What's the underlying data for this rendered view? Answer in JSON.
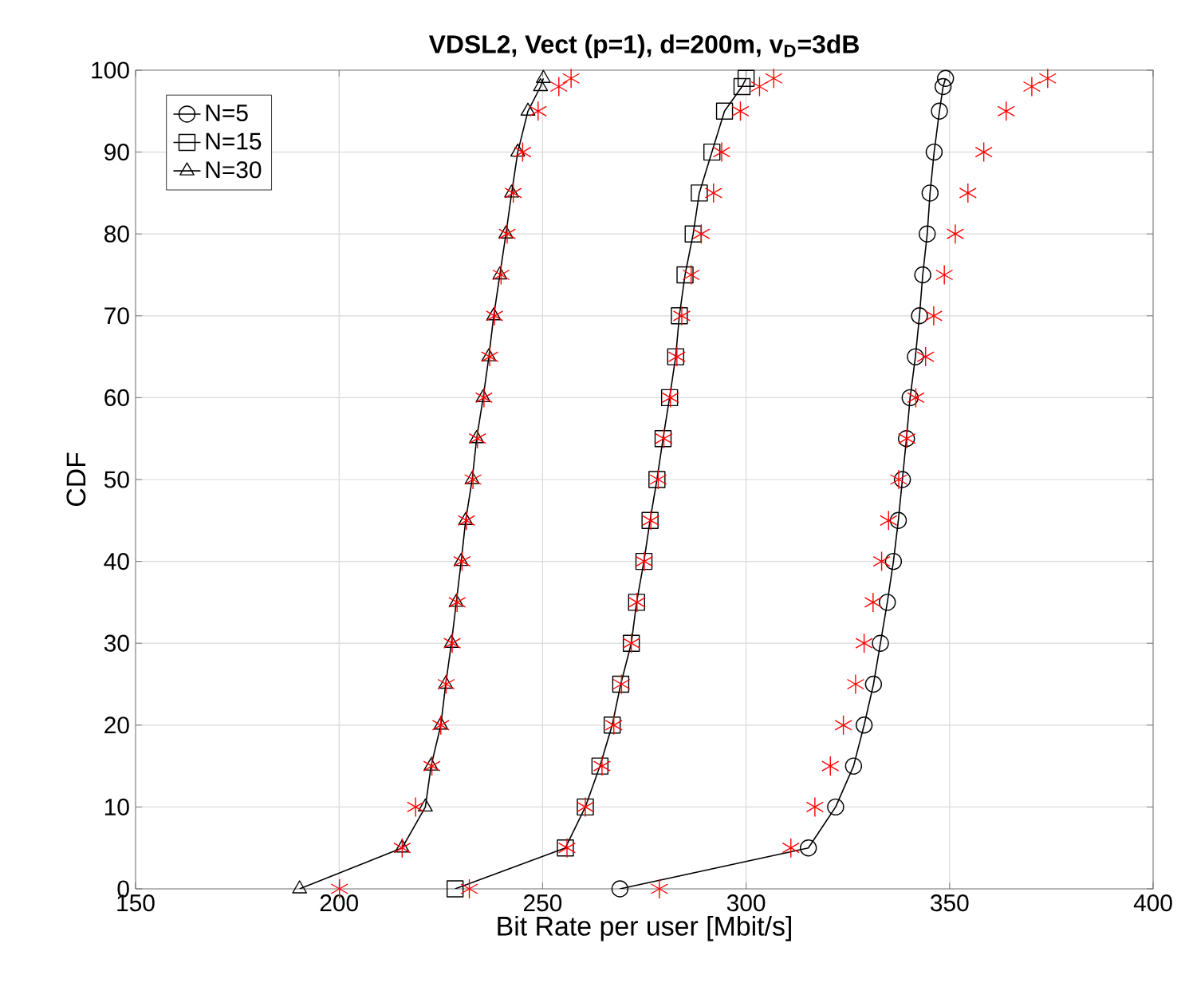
{
  "chart_data": {
    "type": "line",
    "title": "VDSL2, Vect (p=1), d=200m, v$_{D}$=3dB",
    "xlabel": "Bit Rate per user [Mbit/s]",
    "ylabel": "CDF",
    "xlim": [
      150,
      400
    ],
    "ylim": [
      0,
      100
    ],
    "xticks": [
      150,
      200,
      250,
      300,
      350,
      400
    ],
    "yticks": [
      0,
      10,
      20,
      30,
      40,
      50,
      60,
      70,
      80,
      90,
      100
    ],
    "grid": true,
    "legend": "top left",
    "line_style": "solid",
    "series": [
      {
        "name": "N=5",
        "color": "#000000",
        "marker": "circle",
        "x": [
          269,
          315.3,
          322.0,
          326.4,
          329.0,
          331.3,
          333.0,
          334.7,
          336.2,
          337.4,
          338.4,
          339.4,
          340.3,
          341.6,
          342.6,
          343.4,
          344.5,
          345.2,
          346.2,
          347.5,
          348.4,
          349.0
        ],
        "values": [
          0,
          5,
          10,
          15,
          20,
          25,
          30,
          35,
          40,
          45,
          50,
          55,
          60,
          65,
          70,
          75,
          80,
          85,
          90,
          95,
          98,
          99
        ]
      },
      {
        "name": "N=15",
        "color": "#000000",
        "marker": "square",
        "x": [
          228.5,
          255.6,
          260.5,
          264.1,
          267.1,
          269.2,
          271.8,
          273.1,
          274.9,
          276.4,
          278.1,
          279.6,
          281.2,
          282.7,
          283.6,
          285.0,
          287.0,
          288.5,
          291.6,
          294.7,
          299.0,
          300.0
        ],
        "values": [
          0,
          5,
          10,
          15,
          20,
          25,
          30,
          35,
          40,
          45,
          50,
          55,
          60,
          65,
          70,
          75,
          80,
          85,
          90,
          95,
          98,
          99
        ]
      },
      {
        "name": "N=30",
        "color": "#000000",
        "marker": "triangle",
        "x": [
          190.3,
          215.5,
          221.2,
          222.6,
          225.0,
          226.2,
          227.6,
          228.8,
          230.0,
          231.1,
          232.7,
          233.8,
          235.4,
          236.8,
          238.0,
          239.5,
          241.0,
          242.4,
          243.9,
          246.4,
          249.5,
          250.2
        ],
        "values": [
          0,
          5,
          10,
          15,
          20,
          25,
          30,
          35,
          40,
          45,
          50,
          55,
          60,
          65,
          70,
          75,
          80,
          85,
          90,
          95,
          98,
          99
        ]
      },
      {
        "type": "scatter",
        "color": "#ff0000",
        "marker": "cross",
        "x": [
          278.7,
          311.0,
          316.9,
          320.7,
          323.9,
          326.9,
          329.0,
          331.2,
          333.3,
          335.0,
          337.5,
          339.5,
          341.7,
          344.1,
          346.1,
          348.7,
          351.4,
          354.5,
          358.4,
          363.9,
          370.2,
          374.1
        ],
        "values": [
          0,
          5,
          10,
          15,
          20,
          25,
          30,
          35,
          40,
          45,
          50,
          55,
          60,
          65,
          70,
          75,
          80,
          85,
          90,
          95,
          98,
          99
        ]
      },
      {
        "type": "scatter",
        "color": "#ff0000",
        "marker": "cross",
        "x": [
          232.0,
          256.0,
          260.5,
          264.6,
          267.5,
          269.4,
          271.8,
          273.2,
          275.0,
          276.6,
          278.4,
          279.8,
          281.4,
          283.0,
          284.2,
          286.5,
          289.0,
          292.0,
          294.0,
          298.6,
          303.3,
          306.8
        ],
        "values": [
          0,
          5,
          10,
          15,
          20,
          25,
          30,
          35,
          40,
          45,
          50,
          55,
          60,
          65,
          70,
          75,
          80,
          85,
          90,
          95,
          98,
          99
        ]
      },
      {
        "type": "scatter",
        "color": "#ff0000",
        "marker": "cross",
        "x": [
          200.1,
          215.5,
          218.8,
          222.8,
          225.0,
          226.3,
          227.8,
          229.0,
          230.2,
          231.3,
          232.9,
          234.0,
          235.6,
          237.0,
          238.2,
          239.8,
          241.3,
          242.8,
          245.1,
          248.9,
          254.0,
          257.0
        ],
        "values": [
          0,
          5,
          10,
          15,
          20,
          25,
          30,
          35,
          40,
          45,
          50,
          55,
          60,
          65,
          70,
          75,
          80,
          85,
          90,
          95,
          98,
          99
        ]
      }
    ]
  }
}
